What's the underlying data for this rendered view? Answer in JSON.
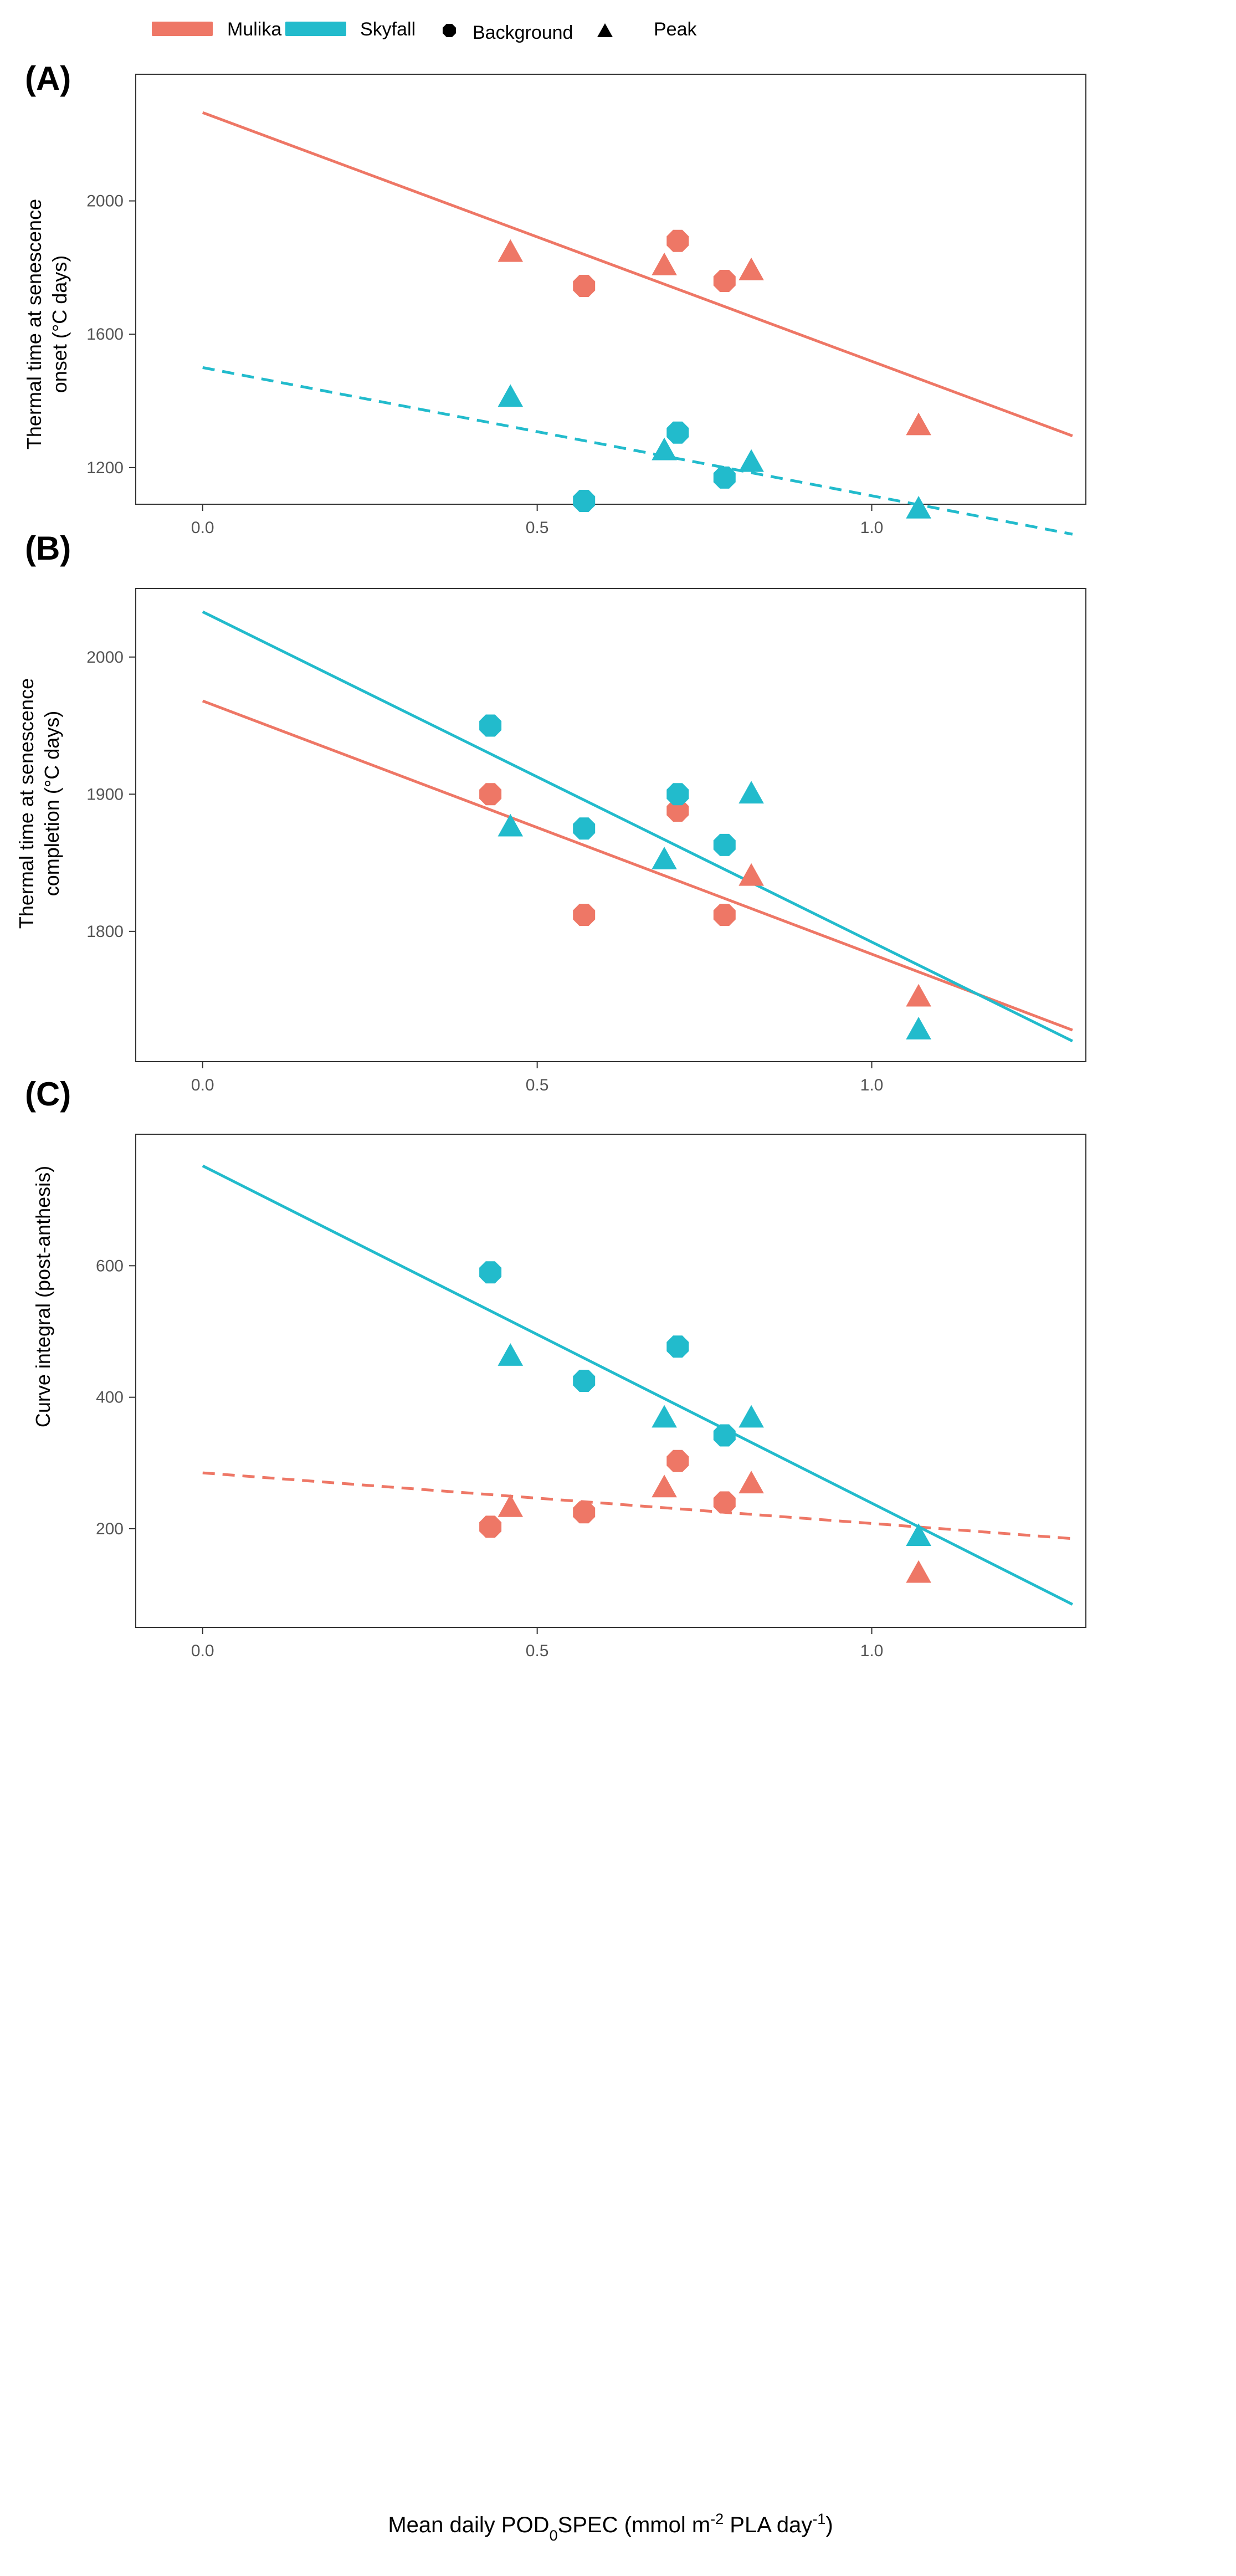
{
  "legend": {
    "series": [
      {
        "name": "Mulika",
        "color": "#EE7766"
      },
      {
        "name": "Skyfall",
        "color": "#22BBCC"
      }
    ],
    "shapes": [
      {
        "name": "Background",
        "shape": "octagon"
      },
      {
        "name": "Peak",
        "shape": "triangle"
      }
    ]
  },
  "xlabel": {
    "prefix": "Mean daily POD",
    "sub": "0",
    "mid": "SPEC (mmol m",
    "sup1": "-2",
    "mid2": " PLA day",
    "sup2": "-1",
    "suffix": ")"
  },
  "chart_data": [
    {
      "type": "scatter",
      "panel_label": "(A)",
      "ylabel_lines": [
        "Thermal time at senescence",
        "onset (°C days)"
      ],
      "xlim": [
        -0.1,
        1.32
      ],
      "ylim": [
        1090,
        2380
      ],
      "xticks": [
        0.0,
        0.5,
        1.0
      ],
      "xtick_labels": [
        "0.0",
        "0.5",
        "1.0"
      ],
      "yticks": [
        1200,
        1600,
        2000
      ],
      "ytick_labels": [
        "1200",
        "1600",
        "2000"
      ],
      "series": [
        {
          "name": "Mulika",
          "points": [
            {
              "x": 0.46,
              "y": 1845,
              "shape": "triangle"
            },
            {
              "x": 0.57,
              "y": 1745,
              "shape": "octagon"
            },
            {
              "x": 0.69,
              "y": 1805,
              "shape": "triangle"
            },
            {
              "x": 0.71,
              "y": 1880,
              "shape": "octagon"
            },
            {
              "x": 0.78,
              "y": 1760,
              "shape": "octagon"
            },
            {
              "x": 0.82,
              "y": 1790,
              "shape": "triangle"
            },
            {
              "x": 1.07,
              "y": 1325,
              "shape": "triangle"
            }
          ],
          "fit": {
            "x": [
              0.0,
              1.3
            ],
            "y": [
              2265,
              1295
            ],
            "style": "solid"
          }
        },
        {
          "name": "Skyfall",
          "points": [
            {
              "x": 0.46,
              "y": 1410,
              "shape": "triangle"
            },
            {
              "x": 0.57,
              "y": 1100,
              "shape": "octagon"
            },
            {
              "x": 0.69,
              "y": 1250,
              "shape": "triangle"
            },
            {
              "x": 0.71,
              "y": 1305,
              "shape": "octagon"
            },
            {
              "x": 0.78,
              "y": 1170,
              "shape": "octagon"
            },
            {
              "x": 0.82,
              "y": 1215,
              "shape": "triangle"
            },
            {
              "x": 1.07,
              "y": 1075,
              "shape": "triangle"
            }
          ],
          "fit": {
            "x": [
              0.0,
              1.3
            ],
            "y": [
              1500,
              1000
            ],
            "style": "dashed"
          }
        }
      ]
    },
    {
      "type": "scatter",
      "panel_label": "(B)",
      "ylabel_lines": [
        "Thermal time at senescence",
        "completion (°C  days)"
      ],
      "xlim": [
        -0.1,
        1.32
      ],
      "ylim": [
        1705,
        2050
      ],
      "xticks": [
        0.0,
        0.5,
        1.0
      ],
      "xtick_labels": [
        "0.0",
        "0.5",
        "1.0"
      ],
      "yticks": [
        1800,
        1900,
        2000
      ],
      "ytick_labels": [
        "1800",
        "1900",
        "2000"
      ],
      "series": [
        {
          "name": "Mulika",
          "points": [
            {
              "x": 0.43,
              "y": 1900,
              "shape": "octagon"
            },
            {
              "x": 0.57,
              "y": 1812,
              "shape": "octagon"
            },
            {
              "x": 0.71,
              "y": 1888,
              "shape": "octagon"
            },
            {
              "x": 0.78,
              "y": 1812,
              "shape": "octagon"
            },
            {
              "x": 0.82,
              "y": 1840,
              "shape": "triangle"
            },
            {
              "x": 1.07,
              "y": 1752,
              "shape": "triangle"
            }
          ],
          "fit": {
            "x": [
              0.0,
              1.3
            ],
            "y": [
              1968,
              1728
            ],
            "style": "solid"
          }
        },
        {
          "name": "Skyfall",
          "points": [
            {
              "x": 0.43,
              "y": 1950,
              "shape": "octagon"
            },
            {
              "x": 0.46,
              "y": 1876,
              "shape": "triangle"
            },
            {
              "x": 0.57,
              "y": 1875,
              "shape": "octagon"
            },
            {
              "x": 0.69,
              "y": 1852,
              "shape": "triangle"
            },
            {
              "x": 0.71,
              "y": 1900,
              "shape": "octagon"
            },
            {
              "x": 0.78,
              "y": 1863,
              "shape": "octagon"
            },
            {
              "x": 0.82,
              "y": 1900,
              "shape": "triangle"
            },
            {
              "x": 1.07,
              "y": 1728,
              "shape": "triangle"
            }
          ],
          "fit": {
            "x": [
              0.0,
              1.3
            ],
            "y": [
              2033,
              1720
            ],
            "style": "solid"
          }
        }
      ]
    },
    {
      "type": "scatter",
      "panel_label": "(C)",
      "ylabel_lines": [
        "Curve integral (post-anthesis)"
      ],
      "xlim": [
        -0.1,
        1.32
      ],
      "ylim": [
        50,
        800
      ],
      "xticks": [
        0.0,
        0.5,
        1.0
      ],
      "xtick_labels": [
        "0.0",
        "0.5",
        "1.0"
      ],
      "yticks": [
        200,
        400,
        600
      ],
      "ytick_labels": [
        "200",
        "400",
        "600"
      ],
      "series": [
        {
          "name": "Mulika",
          "points": [
            {
              "x": 0.43,
              "y": 203,
              "shape": "octagon"
            },
            {
              "x": 0.46,
              "y": 232,
              "shape": "triangle"
            },
            {
              "x": 0.57,
              "y": 225,
              "shape": "octagon"
            },
            {
              "x": 0.69,
              "y": 262,
              "shape": "triangle"
            },
            {
              "x": 0.71,
              "y": 303,
              "shape": "octagon"
            },
            {
              "x": 0.78,
              "y": 240,
              "shape": "octagon"
            },
            {
              "x": 0.82,
              "y": 268,
              "shape": "triangle"
            },
            {
              "x": 1.07,
              "y": 132,
              "shape": "triangle"
            }
          ],
          "fit": {
            "x": [
              0.0,
              1.3
            ],
            "y": [
              285,
              185
            ],
            "style": "dashed"
          }
        },
        {
          "name": "Skyfall",
          "points": [
            {
              "x": 0.43,
              "y": 590,
              "shape": "octagon"
            },
            {
              "x": 0.46,
              "y": 462,
              "shape": "triangle"
            },
            {
              "x": 0.57,
              "y": 425,
              "shape": "octagon"
            },
            {
              "x": 0.69,
              "y": 368,
              "shape": "triangle"
            },
            {
              "x": 0.71,
              "y": 477,
              "shape": "octagon"
            },
            {
              "x": 0.78,
              "y": 342,
              "shape": "octagon"
            },
            {
              "x": 0.82,
              "y": 368,
              "shape": "triangle"
            },
            {
              "x": 1.07,
              "y": 188,
              "shape": "triangle"
            }
          ],
          "fit": {
            "x": [
              0.0,
              1.3
            ],
            "y": [
              752,
              85
            ],
            "style": "solid"
          }
        }
      ]
    }
  ]
}
